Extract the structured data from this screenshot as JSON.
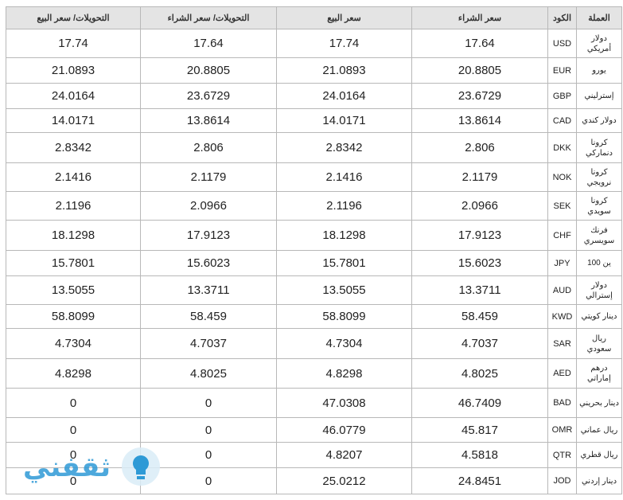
{
  "table": {
    "headers": [
      "العملة",
      "الكود",
      "سعر الشراء",
      "سعر البيع",
      "التحويلات/ سعر الشراء",
      "التحويلات/ سعر البيع"
    ],
    "rows": [
      [
        "دولار أمريكي",
        "USD",
        "17.64",
        "17.74",
        "17.64",
        "17.74"
      ],
      [
        "يورو",
        "EUR",
        "20.8805",
        "21.0893",
        "20.8805",
        "21.0893"
      ],
      [
        "إسترليني",
        "GBP",
        "23.6729",
        "24.0164",
        "23.6729",
        "24.0164"
      ],
      [
        "دولار كندي",
        "CAD",
        "13.8614",
        "14.0171",
        "13.8614",
        "14.0171"
      ],
      [
        "كرونا دنماركي",
        "DKK",
        "2.806",
        "2.8342",
        "2.806",
        "2.8342"
      ],
      [
        "كرونا نرويجي",
        "NOK",
        "2.1179",
        "2.1416",
        "2.1179",
        "2.1416"
      ],
      [
        "كرونا سويدي",
        "SEK",
        "2.0966",
        "2.1196",
        "2.0966",
        "2.1196"
      ],
      [
        "فرنك سويسري",
        "CHF",
        "17.9123",
        "18.1298",
        "17.9123",
        "18.1298"
      ],
      [
        "ين 100",
        "JPY",
        "15.6023",
        "15.7801",
        "15.6023",
        "15.7801"
      ],
      [
        "دولار إسترالي",
        "AUD",
        "13.3711",
        "13.5055",
        "13.3711",
        "13.5055"
      ],
      [
        "دينار كويتي",
        "KWD",
        "58.459",
        "58.8099",
        "58.459",
        "58.8099"
      ],
      [
        "ريال سعودي",
        "SAR",
        "4.7037",
        "4.7304",
        "4.7037",
        "4.7304"
      ],
      [
        "درهم إماراتي",
        "AED",
        "4.8025",
        "4.8298",
        "4.8025",
        "4.8298"
      ],
      [
        "دينار بحريني",
        "BAD",
        "46.7409",
        "47.0308",
        "0",
        "0"
      ],
      [
        "ريال عماني",
        "OMR",
        "45.817",
        "46.0779",
        "0",
        "0"
      ],
      [
        "ريال قطري",
        "QTR",
        "4.5818",
        "4.8207",
        "0",
        "0"
      ],
      [
        "دينار إردني",
        "JOD",
        "24.8451",
        "25.0212",
        "0",
        "0"
      ]
    ]
  },
  "watermark": "ثقفني"
}
